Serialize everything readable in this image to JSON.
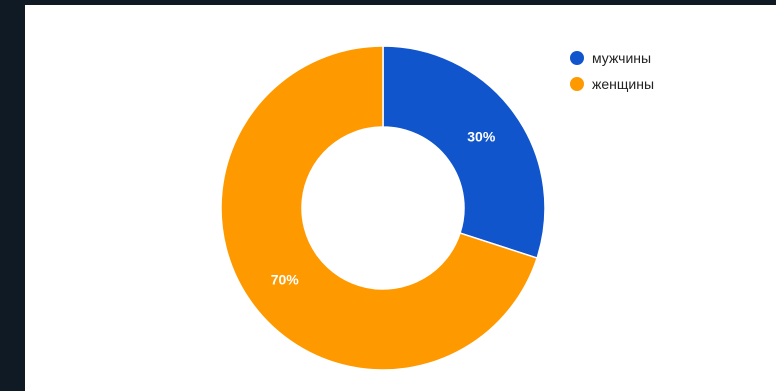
{
  "chart_data": {
    "type": "pie",
    "donut": true,
    "title": "",
    "series": [
      {
        "values": [
          30,
          70
        ],
        "labels": [
          "30%",
          "70%"
        ]
      }
    ],
    "categories": [
      "мужчины",
      "женщины"
    ],
    "colors": [
      "#1155cc",
      "#ff9900"
    ],
    "start_angle_deg": 0,
    "legend_position": "top-right",
    "data_label_color": "#ffffff"
  }
}
